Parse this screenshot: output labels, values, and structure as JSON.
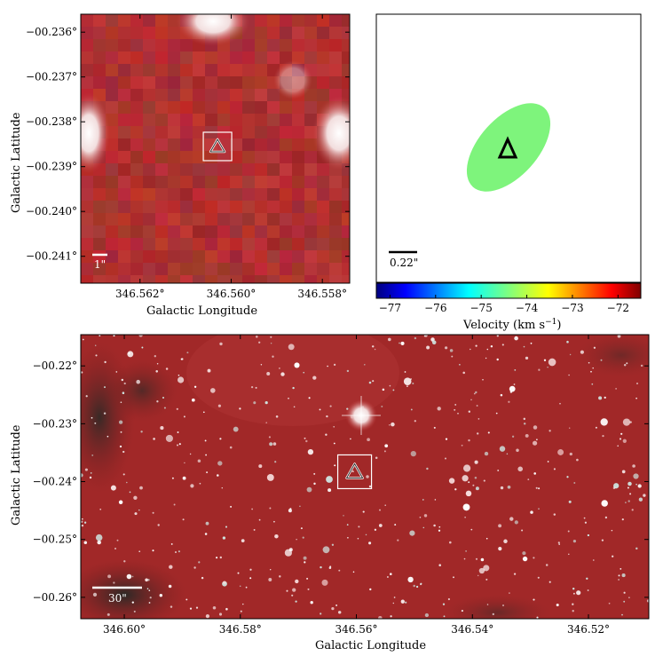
{
  "panel_top_left": {
    "ylabel": "Galactic Latitude",
    "xlabel": "Galactic Longitude",
    "xticks": [
      "346.562°",
      "346.560°",
      "346.558°"
    ],
    "xtick_values": [
      346.562,
      346.56,
      346.558
    ],
    "xlim": [
      346.5633,
      346.5574
    ],
    "yticks": [
      "−00.236°",
      "−00.237°",
      "−00.238°",
      "−00.239°",
      "−00.240°",
      "−00.241°"
    ],
    "ytick_values": [
      -0.236,
      -0.237,
      -0.238,
      -0.239,
      -0.24,
      -0.241
    ],
    "ylim": [
      -0.2416,
      -0.2356
    ],
    "scalebar_label": "1\"",
    "marker": {
      "l": 346.5603,
      "b": -0.23855
    }
  },
  "panel_top_right": {
    "scalebar_label": "0.22\"",
    "colorbar_label": "Velocity (km s",
    "colorbar_label_sup": "−1",
    "colorbar_label_end": ")",
    "colorbar_ticks": [
      "−77",
      "−76",
      "−75",
      "−74",
      "−73",
      "−72"
    ],
    "colorbar_tick_values": [
      -77,
      -76,
      -75,
      -74,
      -73,
      -72
    ],
    "colorbar_range": [
      -77.3,
      -71.5
    ],
    "ellipse_color": "#7ef47c"
  },
  "panel_bottom": {
    "ylabel": "Galactic Latitude",
    "xlabel": "Galactic Longitude",
    "xticks": [
      "346.60°",
      "346.58°",
      "346.56°",
      "346.54°",
      "346.52°"
    ],
    "xtick_values": [
      346.6,
      346.58,
      346.56,
      346.54,
      346.52
    ],
    "xlim": [
      346.6075,
      346.5096
    ],
    "yticks": [
      "−00.22°",
      "−00.23°",
      "−00.24°",
      "−00.25°",
      "−00.26°"
    ],
    "ytick_values": [
      -0.22,
      -0.23,
      -0.24,
      -0.25,
      -0.26
    ],
    "ylim": [
      -0.2637,
      -0.2146
    ],
    "scalebar_label": "30\"",
    "marker": {
      "l": 346.5603,
      "b": -0.2383
    }
  },
  "chart_data": [
    {
      "type": "heatmap",
      "description": "three-colour infrared cutout (zoom)",
      "xlabel": "Galactic Longitude",
      "ylabel": "Galactic Latitude"
    },
    {
      "type": "scatter",
      "description": "maser spot velocity map",
      "colorbar": "Velocity (km s^-1)",
      "colorbar_range": [
        -77.3,
        -71.5
      ]
    },
    {
      "type": "heatmap",
      "description": "three-colour infrared field",
      "xlabel": "Galactic Longitude",
      "ylabel": "Galactic Latitude"
    }
  ]
}
